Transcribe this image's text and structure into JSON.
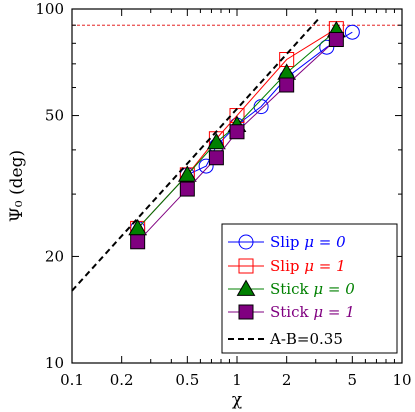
{
  "chart_data": {
    "type": "line",
    "title": "",
    "xlabel": "χ",
    "ylabel": "Ψ₀ (deg)",
    "x_scale": "log",
    "y_scale": "log",
    "xlim": [
      0.1,
      10
    ],
    "ylim": [
      10,
      100
    ],
    "x_ticks": [
      0.1,
      0.2,
      0.5,
      1,
      2,
      5,
      10
    ],
    "x_tick_labels": [
      "0.1",
      "0.2",
      "0.5",
      "1",
      "2",
      "5",
      "10"
    ],
    "y_ticks": [
      10,
      20,
      50,
      100
    ],
    "y_tick_labels": [
      "10",
      "20",
      "50",
      "100"
    ],
    "reference_line": {
      "y": 90,
      "style": "dashed",
      "color": "#e00000"
    },
    "legend_position": "bottom-right",
    "series": [
      {
        "name": "Slip μ = 0",
        "label_prefix": "Slip",
        "label_param": "μ = 0",
        "color": "#0000ff",
        "marker": "circle-open",
        "x": [
          0.25,
          0.5,
          0.65,
          0.75,
          1.0,
          1.4,
          2.0,
          3.5,
          5.0
        ],
        "y": [
          24,
          34,
          36,
          41,
          47,
          53,
          64,
          78,
          86
        ]
      },
      {
        "name": "Slip μ = 1",
        "label_prefix": "Slip",
        "label_param": "μ = 1",
        "color": "#ff0000",
        "marker": "square-open",
        "x": [
          0.25,
          0.5,
          0.75,
          1.0,
          2.0,
          4.0
        ],
        "y": [
          24,
          34,
          43,
          50,
          72,
          88
        ]
      },
      {
        "name": "Stick μ = 0",
        "label_prefix": "Stick",
        "label_param": "μ = 0",
        "color": "#008000",
        "marker": "triangle-filled",
        "x": [
          0.25,
          0.5,
          0.75,
          1.0,
          2.0,
          4.0
        ],
        "y": [
          24,
          34,
          42,
          47,
          66,
          87
        ]
      },
      {
        "name": "Stick μ = 1",
        "label_prefix": "Stick",
        "label_param": "μ = 1",
        "color": "#800080",
        "marker": "square-filled",
        "x": [
          0.25,
          0.5,
          0.75,
          1.0,
          2.0,
          4.0
        ],
        "y": [
          22,
          31,
          38,
          45,
          61,
          82
        ]
      },
      {
        "name": "A-B=0.35",
        "color": "#000000",
        "marker": "none",
        "style": "dashed",
        "x": [
          0.1,
          3.2
        ],
        "y": [
          16,
          95
        ]
      }
    ]
  }
}
